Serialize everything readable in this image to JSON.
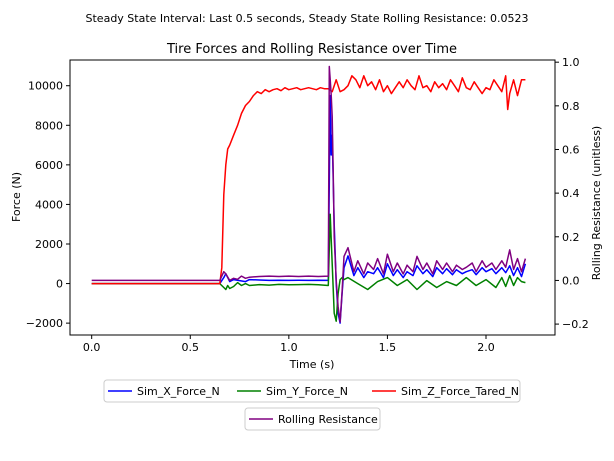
{
  "figure": {
    "suptitle": "Steady State Interval: Last 0.5 seconds, Steady State Rolling Resistance: 0.0523"
  },
  "chart_data": {
    "type": "line",
    "title": "Tire Forces and Rolling Resistance over Time",
    "xlabel": "Time (s)",
    "ylabel": "Force (N)",
    "ylabel_right": "Rolling Resistance (unitless)",
    "xlim": [
      -0.11,
      2.35
    ],
    "ylim": [
      -2600,
      11300
    ],
    "ylim_right": [
      -0.25,
      1.01
    ],
    "x_ticks": [
      0.0,
      0.5,
      1.0,
      1.5,
      2.0
    ],
    "x_tick_labels": [
      "0.0",
      "0.5",
      "1.0",
      "1.5",
      "2.0"
    ],
    "y_ticks": [
      -2000,
      0,
      2000,
      4000,
      6000,
      8000,
      10000
    ],
    "y_tick_labels": [
      "−2000",
      "0",
      "2000",
      "4000",
      "6000",
      "8000",
      "10000"
    ],
    "y_right_ticks": [
      -0.2,
      0.0,
      0.2,
      0.4,
      0.6,
      0.8,
      1.0
    ],
    "y_right_tick_labels": [
      "−0.2",
      "0.0",
      "0.2",
      "0.4",
      "0.6",
      "0.8",
      "1.0"
    ],
    "grid": false,
    "legend_placement": "below",
    "series": [
      {
        "name": "Sim_X_Force_N",
        "color": "#0000ff",
        "axis": "left",
        "x": [
          0.0,
          0.5,
          0.65,
          0.67,
          0.68,
          0.7,
          0.72,
          0.75,
          0.78,
          0.8,
          0.85,
          0.9,
          0.95,
          1.0,
          1.05,
          1.1,
          1.15,
          1.2,
          1.21,
          1.215,
          1.22,
          1.23,
          1.24,
          1.25,
          1.26,
          1.27,
          1.28,
          1.3,
          1.33,
          1.35,
          1.38,
          1.4,
          1.43,
          1.45,
          1.48,
          1.5,
          1.53,
          1.55,
          1.58,
          1.6,
          1.63,
          1.65,
          1.68,
          1.7,
          1.73,
          1.75,
          1.78,
          1.8,
          1.83,
          1.85,
          1.88,
          1.9,
          1.93,
          1.95,
          1.98,
          2.0,
          2.03,
          2.05,
          2.08,
          2.1,
          2.12,
          2.14,
          2.16,
          2.18,
          2.2
        ],
        "y": [
          0,
          0,
          0,
          300,
          500,
          100,
          200,
          150,
          100,
          200,
          180,
          160,
          170,
          160,
          165,
          160,
          170,
          160,
          9500,
          6500,
          7500,
          3000,
          0,
          -1500,
          -2000,
          -500,
          800,
          1400,
          400,
          800,
          300,
          600,
          500,
          800,
          300,
          1000,
          400,
          700,
          300,
          600,
          400,
          900,
          500,
          700,
          350,
          800,
          500,
          750,
          450,
          700,
          500,
          600,
          700,
          450,
          800,
          600,
          750,
          500,
          800,
          550,
          900,
          400,
          800,
          350,
          1000
        ]
      },
      {
        "name": "Sim_Y_Force_N",
        "color": "#008000",
        "axis": "left",
        "x": [
          0.0,
          0.65,
          0.67,
          0.68,
          0.69,
          0.7,
          0.72,
          0.74,
          0.76,
          0.78,
          0.8,
          0.85,
          0.9,
          0.95,
          1.0,
          1.05,
          1.1,
          1.15,
          1.2,
          1.21,
          1.22,
          1.23,
          1.24,
          1.25,
          1.26,
          1.27,
          1.28,
          1.3,
          1.35,
          1.4,
          1.45,
          1.5,
          1.55,
          1.6,
          1.65,
          1.7,
          1.75,
          1.8,
          1.85,
          1.9,
          1.95,
          2.0,
          2.05,
          2.08,
          2.1,
          2.12,
          2.14,
          2.16,
          2.18,
          2.2
        ],
        "y": [
          0,
          0,
          -200,
          -300,
          -100,
          -250,
          -150,
          50,
          -100,
          0,
          -100,
          -50,
          -80,
          -40,
          -60,
          -50,
          -40,
          -60,
          -100,
          3500,
          1000,
          -1500,
          -1900,
          -500,
          200,
          300,
          200,
          300,
          0,
          -300,
          100,
          300,
          -100,
          200,
          -300,
          150,
          -200,
          100,
          -100,
          300,
          -100,
          200,
          -200,
          300,
          -150,
          400,
          -100,
          300,
          100,
          50
        ]
      },
      {
        "name": "Sim_Z_Force_Tared_N",
        "color": "#ff0000",
        "axis": "left",
        "x": [
          0.0,
          0.65,
          0.66,
          0.67,
          0.68,
          0.69,
          0.7,
          0.72,
          0.74,
          0.76,
          0.78,
          0.8,
          0.82,
          0.84,
          0.86,
          0.88,
          0.9,
          0.92,
          0.94,
          0.96,
          0.98,
          1.0,
          1.02,
          1.04,
          1.06,
          1.08,
          1.1,
          1.12,
          1.14,
          1.16,
          1.18,
          1.2,
          1.22,
          1.24,
          1.26,
          1.28,
          1.3,
          1.32,
          1.34,
          1.36,
          1.38,
          1.4,
          1.42,
          1.44,
          1.46,
          1.48,
          1.5,
          1.52,
          1.54,
          1.56,
          1.58,
          1.6,
          1.62,
          1.64,
          1.66,
          1.68,
          1.7,
          1.72,
          1.74,
          1.76,
          1.78,
          1.8,
          1.82,
          1.84,
          1.86,
          1.88,
          1.9,
          1.92,
          1.94,
          1.96,
          1.98,
          2.0,
          2.02,
          2.04,
          2.06,
          2.08,
          2.1,
          2.11,
          2.12,
          2.14,
          2.16,
          2.18,
          2.2
        ],
        "y": [
          0,
          0,
          800,
          4500,
          6000,
          6800,
          7000,
          7500,
          8000,
          8600,
          9000,
          9200,
          9500,
          9700,
          9600,
          9800,
          9700,
          9800,
          9850,
          9750,
          9900,
          9800,
          9850,
          9900,
          9800,
          9850,
          9900,
          9850,
          9800,
          9900,
          9850,
          9850,
          9700,
          10300,
          9700,
          9800,
          10000,
          10500,
          10300,
          9900,
          10500,
          10000,
          10200,
          9800,
          10300,
          9700,
          10000,
          9600,
          9900,
          10200,
          9900,
          10300,
          10000,
          9800,
          10500,
          9900,
          10000,
          9700,
          10200,
          9900,
          10100,
          9800,
          10300,
          10000,
          9700,
          10400,
          9900,
          9800,
          10200,
          9900,
          9600,
          9900,
          9800,
          10300,
          10000,
          9700,
          10500,
          8800,
          9600,
          10300,
          9500,
          10300,
          10300
        ]
      },
      {
        "name": "Rolling Resistance",
        "color": "#800080",
        "axis": "right",
        "x": [
          0.0,
          0.5,
          0.65,
          0.67,
          0.68,
          0.7,
          0.72,
          0.74,
          0.76,
          0.78,
          0.8,
          0.85,
          0.9,
          0.95,
          1.0,
          1.05,
          1.1,
          1.15,
          1.2,
          1.205,
          1.21,
          1.215,
          1.22,
          1.225,
          1.23,
          1.24,
          1.25,
          1.26,
          1.27,
          1.28,
          1.3,
          1.33,
          1.35,
          1.38,
          1.4,
          1.43,
          1.45,
          1.48,
          1.5,
          1.53,
          1.55,
          1.58,
          1.6,
          1.63,
          1.65,
          1.68,
          1.7,
          1.73,
          1.75,
          1.78,
          1.8,
          1.83,
          1.85,
          1.88,
          1.9,
          1.93,
          1.95,
          1.98,
          2.0,
          2.03,
          2.05,
          2.08,
          2.1,
          2.12,
          2.14,
          2.16,
          2.18,
          2.2
        ],
        "y": [
          0.0,
          0.0,
          0.0,
          0.04,
          0.03,
          0.0,
          0.01,
          0.005,
          0.02,
          0.01,
          0.015,
          0.018,
          0.02,
          0.018,
          0.02,
          0.018,
          0.02,
          0.018,
          0.02,
          0.98,
          0.92,
          0.85,
          0.75,
          0.5,
          0.2,
          0.0,
          -0.12,
          -0.19,
          -0.05,
          0.11,
          0.15,
          0.04,
          0.09,
          0.03,
          0.08,
          0.05,
          0.1,
          0.03,
          0.12,
          0.04,
          0.08,
          0.03,
          0.07,
          0.04,
          0.11,
          0.05,
          0.08,
          0.03,
          0.09,
          0.05,
          0.08,
          0.04,
          0.07,
          0.05,
          0.06,
          0.08,
          0.04,
          0.09,
          0.06,
          0.08,
          0.05,
          0.09,
          0.06,
          0.14,
          0.05,
          0.1,
          0.04,
          0.1
        ]
      }
    ]
  }
}
